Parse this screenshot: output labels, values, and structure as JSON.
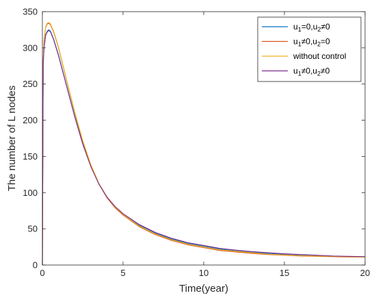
{
  "chart_data": {
    "type": "line",
    "title": "",
    "xlabel": "Time(year)",
    "ylabel": "The number of L nodes",
    "xlim": [
      0,
      20
    ],
    "ylim": [
      0,
      350
    ],
    "xticks": [
      "0",
      "5",
      "10",
      "15",
      "20"
    ],
    "yticks": [
      "0",
      "50",
      "100",
      "150",
      "200",
      "250",
      "300",
      "350"
    ],
    "grid": false,
    "legend_position": "top-right",
    "series": [
      {
        "name": "u1=0,u2≠0",
        "legend": {
          "a": "u",
          "a_sub": "1",
          "b": "=0,u",
          "b_sub": "2",
          "c": "≠0"
        },
        "color": "#0072BD",
        "x": [
          0,
          0.05,
          0.1,
          0.2,
          0.3,
          0.4,
          0.5,
          0.7,
          1,
          1.5,
          2,
          2.5,
          3,
          3.5,
          4,
          4.5,
          5,
          6,
          7,
          8,
          9,
          10,
          11,
          12,
          13,
          14,
          15,
          16,
          17,
          18,
          19,
          20
        ],
        "values": [
          0,
          278,
          300,
          318,
          323,
          325,
          323,
          312,
          290,
          248,
          206,
          168,
          137,
          112,
          94,
          80,
          70,
          55,
          44,
          36,
          30,
          26,
          22,
          20,
          18,
          16,
          15,
          14,
          13,
          12,
          11.5,
          11
        ]
      },
      {
        "name": "u1≠0,u2=0",
        "legend": {
          "a": "u",
          "a_sub": "1",
          "b": "≠0,u",
          "b_sub": "2",
          "c": "=0"
        },
        "color": "#D95319",
        "x": [
          0,
          0.05,
          0.1,
          0.2,
          0.3,
          0.4,
          0.5,
          0.7,
          1,
          1.5,
          2,
          2.5,
          3,
          3.5,
          4,
          4.5,
          5,
          6,
          7,
          8,
          9,
          10,
          11,
          12,
          13,
          14,
          15,
          16,
          17,
          18,
          19,
          20
        ],
        "values": [
          0,
          282,
          310,
          328,
          333,
          334,
          332,
          322,
          300,
          255,
          211,
          171,
          138,
          112,
          93,
          79,
          69,
          53,
          42,
          34,
          28,
          24,
          20,
          18,
          16,
          14.5,
          13.5,
          12.5,
          12,
          11.5,
          11,
          11
        ]
      },
      {
        "name": "without control",
        "legend": {
          "a": "without control",
          "a_sub": "",
          "b": "",
          "b_sub": "",
          "c": ""
        },
        "color": "#EDB120",
        "x": [
          0,
          0.05,
          0.1,
          0.2,
          0.3,
          0.4,
          0.5,
          0.7,
          1,
          1.5,
          2,
          2.5,
          3,
          3.5,
          4,
          4.5,
          5,
          6,
          7,
          8,
          9,
          10,
          11,
          12,
          13,
          14,
          15,
          16,
          17,
          18,
          19,
          20
        ],
        "values": [
          0,
          283,
          311,
          329,
          334,
          335,
          333,
          323,
          301,
          256,
          212,
          172,
          139,
          113,
          94,
          80,
          70,
          54,
          43,
          35,
          29,
          25,
          21,
          19,
          17,
          15,
          14,
          13,
          12.5,
          12,
          11.5,
          11
        ]
      },
      {
        "name": "u1≠0,u2≠0",
        "legend": {
          "a": "u",
          "a_sub": "1",
          "b": "≠0,u",
          "b_sub": "2",
          "c": "≠0"
        },
        "color": "#7E2F8E",
        "x": [
          0,
          0.05,
          0.1,
          0.2,
          0.3,
          0.4,
          0.5,
          0.7,
          1,
          1.5,
          2,
          2.5,
          3,
          3.5,
          4,
          4.5,
          5,
          6,
          7,
          8,
          9,
          10,
          11,
          12,
          13,
          14,
          15,
          16,
          17,
          18,
          19,
          20
        ],
        "values": [
          0,
          277,
          299,
          317,
          322,
          324,
          322,
          311,
          289,
          247,
          205,
          167,
          136,
          112,
          94,
          81,
          71,
          56,
          45,
          37,
          31,
          27,
          23,
          20.5,
          18.5,
          17,
          15.5,
          14.5,
          13.5,
          12.5,
          12,
          11.5
        ]
      }
    ]
  }
}
